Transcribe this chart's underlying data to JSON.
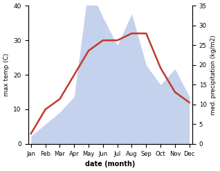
{
  "months": [
    "Jan",
    "Feb",
    "Mar",
    "Apr",
    "May",
    "Jun",
    "Jul",
    "Aug",
    "Sep",
    "Oct",
    "Nov",
    "Dec"
  ],
  "temperature": [
    3,
    10,
    13,
    20,
    27,
    30,
    30,
    32,
    32,
    22,
    15,
    12
  ],
  "precipitation": [
    2,
    5,
    8,
    12,
    40,
    32,
    25,
    33,
    20,
    15,
    19,
    12
  ],
  "temp_color": "#c0392b",
  "precip_fill_color": "#b0c4e8",
  "ylabel_left": "max temp (C)",
  "ylabel_right": "med. precipitation (kg/m2)",
  "xlabel": "date (month)",
  "ylim_left": [
    0,
    40
  ],
  "ylim_right": [
    0,
    35
  ],
  "yticks_left": [
    0,
    10,
    20,
    30,
    40
  ],
  "yticks_right": [
    0,
    5,
    10,
    15,
    20,
    25,
    30,
    35
  ]
}
